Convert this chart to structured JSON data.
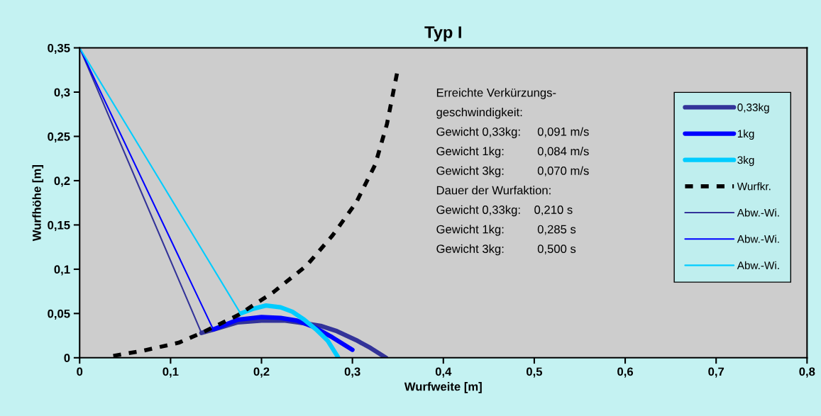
{
  "chart_data": {
    "type": "line",
    "title": "Typ I",
    "xlabel": "Wurfweite [m]",
    "ylabel": "Wurfhöhe [m]",
    "xlim": [
      0,
      0.8
    ],
    "ylim": [
      0,
      0.35
    ],
    "xticks": [
      0,
      {
        "value": 0.1,
        "label": "0,1"
      },
      {
        "value": 0.2,
        "label": "0,2"
      },
      {
        "value": 0.3,
        "label": "0,3"
      },
      {
        "value": 0.4,
        "label": "0,4"
      },
      {
        "value": 0.5,
        "label": "0,5"
      },
      {
        "value": 0.6,
        "label": "0,6"
      },
      {
        "value": 0.7,
        "label": "0,7"
      },
      {
        "value": 0.8,
        "label": "0,8"
      }
    ],
    "yticks": [
      0,
      {
        "value": 0.05,
        "label": "0,05"
      },
      {
        "value": 0.1,
        "label": "0,1"
      },
      {
        "value": 0.15,
        "label": "0,15"
      },
      {
        "value": 0.2,
        "label": "0,2"
      },
      {
        "value": 0.25,
        "label": "0,25"
      },
      {
        "value": 0.3,
        "label": "0,3"
      },
      {
        "value": 0.35,
        "label": "0,35"
      }
    ],
    "grid": false,
    "legend": "right",
    "marker": "none",
    "series": [
      {
        "name": "0,33kg",
        "color": "#333399",
        "line_style": "solid",
        "x": [
          0.134,
          0.148,
          0.174,
          0.2,
          0.226,
          0.247,
          0.265,
          0.283,
          0.304,
          0.32,
          0.337
        ],
        "values": [
          0.028,
          0.032,
          0.04,
          0.042,
          0.042,
          0.039,
          0.036,
          0.03,
          0.02,
          0.011,
          0
        ]
      },
      {
        "name": "1kg",
        "color": "#0000ff",
        "line_style": "solid",
        "x": [
          0.147,
          0.174,
          0.2,
          0.221,
          0.239,
          0.257,
          0.278,
          0.3
        ],
        "values": [
          0.032,
          0.043,
          0.046,
          0.045,
          0.042,
          0.035,
          0.023,
          0.009
        ]
      },
      {
        "name": "3kg",
        "color": "#00ccff",
        "line_style": "solid",
        "x": [
          0.177,
          0.19,
          0.205,
          0.221,
          0.234,
          0.247,
          0.26,
          0.273,
          0.284
        ],
        "values": [
          0.05,
          0.055,
          0.059,
          0.057,
          0.052,
          0.043,
          0.032,
          0.019,
          0.001
        ]
      },
      {
        "name": "Wurfkr.",
        "color": "#000000",
        "line_style": "dashed",
        "x": [
          0.0305,
          0.07,
          0.109,
          0.134,
          0.174,
          0.213,
          0.2495,
          0.278,
          0.304,
          0.325,
          0.338,
          0.349
        ],
        "values": [
          0.001,
          0.008,
          0.017,
          0.028,
          0.048,
          0.074,
          0.104,
          0.138,
          0.175,
          0.218,
          0.264,
          0.321
        ]
      },
      {
        "name": "Abw.-Wi.",
        "color": "#333399",
        "line_style": "solid",
        "x": [
          0,
          0.134
        ],
        "values": [
          0.35,
          0.028
        ]
      },
      {
        "name": "Abw.-Wi.",
        "color": "#0000ff",
        "line_style": "solid",
        "x": [
          0,
          0.147
        ],
        "values": [
          0.35,
          0.032
        ]
      },
      {
        "name": "Abw.-Wi.",
        "color": "#00ccff",
        "line_style": "solid",
        "x": [
          0,
          0.177
        ],
        "values": [
          0.35,
          0.05
        ]
      }
    ],
    "annotations": [
      "Erreichte Verkürzungs-",
      "geschwindigkeit:",
      "Gewicht 0,33kg:     0,091 m/s",
      "Gewicht 1kg:          0,084 m/s",
      "Gewicht 3kg:          0,070 m/s",
      "Dauer der Wurfaktion:",
      "Gewicht 0,33kg:    0,210 s",
      "Gewicht 1kg:          0,285 s",
      "Gewicht 3kg:          0,500 s"
    ]
  }
}
